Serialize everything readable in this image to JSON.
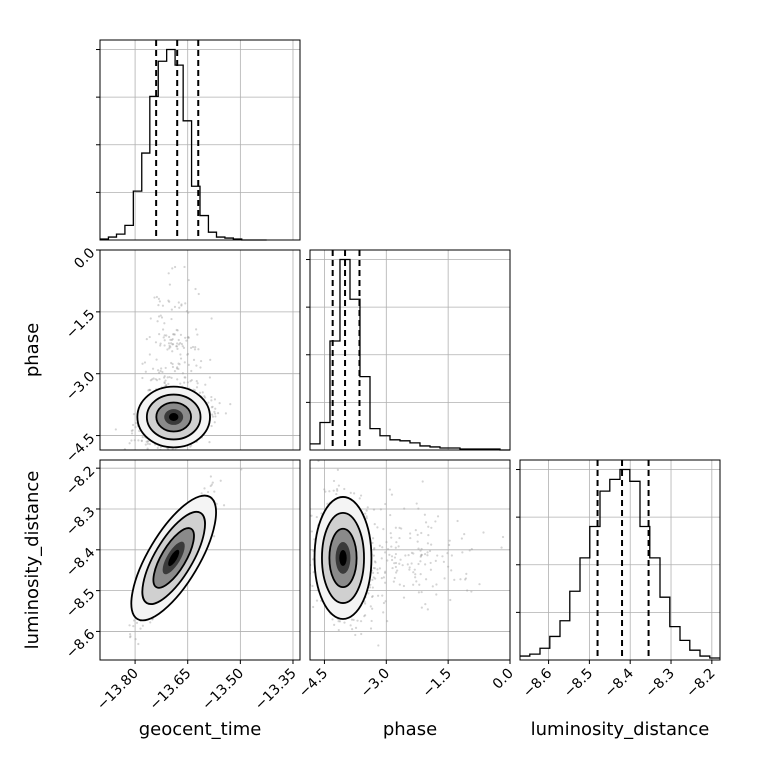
{
  "chart_data": {
    "type": "corner",
    "parameters": [
      "geocent_time",
      "phase",
      "luminosity_distance"
    ],
    "axis_labels": {
      "x": [
        "geocent_time",
        "phase",
        "luminosity_distance"
      ],
      "y": [
        "phase",
        "luminosity_distance"
      ]
    },
    "ranges": {
      "geocent_time": [
        -13.9,
        -13.33
      ],
      "phase": [
        -4.85,
        0.0
      ],
      "luminosity_distance": [
        -8.67,
        -8.18
      ]
    },
    "ticks": {
      "geocent_time": [
        -13.8,
        -13.65,
        -13.5,
        -13.35
      ],
      "phase": [
        -4.5,
        -3.0,
        -1.5,
        0.0
      ],
      "luminosity_distance": [
        -8.6,
        -8.5,
        -8.4,
        -8.3,
        -8.2
      ]
    },
    "tick_labels": {
      "geocent_time": [
        "−13.80",
        "−13.65",
        "−13.50",
        "−13.35"
      ],
      "phase": [
        "−4.5",
        "−3.0",
        "−1.5",
        "0.0"
      ],
      "luminosity_distance": [
        "−8.6",
        "−8.5",
        "−8.4",
        "−8.3",
        "−8.2"
      ]
    },
    "quantiles": {
      "geocent_time": [
        -13.74,
        -13.68,
        -13.62
      ],
      "phase": [
        -4.3,
        -4.0,
        -3.65
      ],
      "luminosity_distance": [
        -8.48,
        -8.42,
        -8.355
      ]
    },
    "histograms": {
      "geocent_time": {
        "edges": [
          -13.9,
          -13.876,
          -13.853,
          -13.829,
          -13.805,
          -13.781,
          -13.758,
          -13.734,
          -13.71,
          -13.686,
          -13.663,
          -13.639,
          -13.615,
          -13.591,
          -13.568,
          -13.544,
          -13.52,
          -13.496,
          -13.473,
          -13.449,
          -13.425
        ],
        "counts": [
          1,
          3,
          6,
          15,
          50,
          89,
          147,
          183,
          195,
          179,
          122,
          55,
          25,
          8,
          3,
          2,
          1,
          0,
          0,
          0
        ]
      },
      "phase": {
        "edges": [
          -4.85,
          -4.608,
          -4.365,
          -4.123,
          -3.88,
          -3.638,
          -3.395,
          -3.153,
          -2.91,
          -2.668,
          -2.425,
          -2.183,
          -1.94,
          -1.698,
          -1.455,
          -1.213,
          -0.97,
          -0.728,
          -0.485,
          -0.243,
          0.0
        ],
        "counts": [
          6,
          27,
          107,
          187,
          148,
          72,
          21,
          14,
          10,
          9,
          7,
          4,
          3,
          2,
          2,
          1,
          1,
          1,
          1,
          0
        ]
      },
      "luminosity_distance": {
        "edges": [
          -8.67,
          -8.646,
          -8.621,
          -8.597,
          -8.572,
          -8.548,
          -8.523,
          -8.499,
          -8.474,
          -8.45,
          -8.425,
          -8.401,
          -8.376,
          -8.352,
          -8.327,
          -8.303,
          -8.278,
          -8.254,
          -8.229,
          -8.205,
          -8.18
        ],
        "counts": [
          2,
          3,
          6,
          12,
          20,
          35,
          52,
          68,
          86,
          92,
          97,
          91,
          68,
          52,
          32,
          17,
          10,
          5,
          2,
          1
        ]
      }
    },
    "grid": true,
    "colors": {
      "line": "#000000",
      "points": "#a0a0a0",
      "grid": "#b0b0b0"
    }
  }
}
